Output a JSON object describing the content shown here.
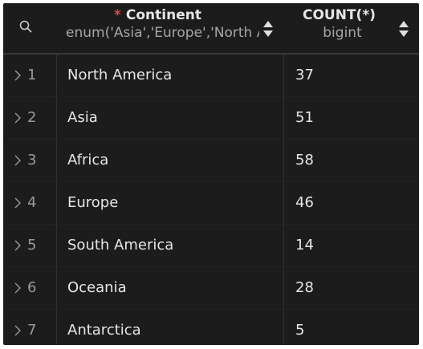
{
  "header": {
    "columns": [
      {
        "name": "Continent",
        "type": "enum('Asia','Europe','North America','Africa','Oceania','Antarctica','South America')",
        "required": true
      },
      {
        "name": "COUNT(*)",
        "type": "bigint",
        "required": false
      }
    ]
  },
  "rows": [
    {
      "index": "1",
      "continent": "North America",
      "count": "37"
    },
    {
      "index": "2",
      "continent": "Asia",
      "count": "51"
    },
    {
      "index": "3",
      "continent": "Africa",
      "count": "58"
    },
    {
      "index": "4",
      "continent": "Europe",
      "count": "46"
    },
    {
      "index": "5",
      "continent": "South America",
      "count": "14"
    },
    {
      "index": "6",
      "continent": "Oceania",
      "count": "28"
    },
    {
      "index": "7",
      "continent": "Antarctica",
      "count": "5"
    }
  ],
  "colors": {
    "background": "#1c1c1c",
    "required_marker": "#e04848",
    "text": "#e6e6e6",
    "muted": "#a6a6a6"
  },
  "icons": {
    "search": "search-icon",
    "sort": "sort-icon",
    "expand": "chevron-right-icon"
  }
}
